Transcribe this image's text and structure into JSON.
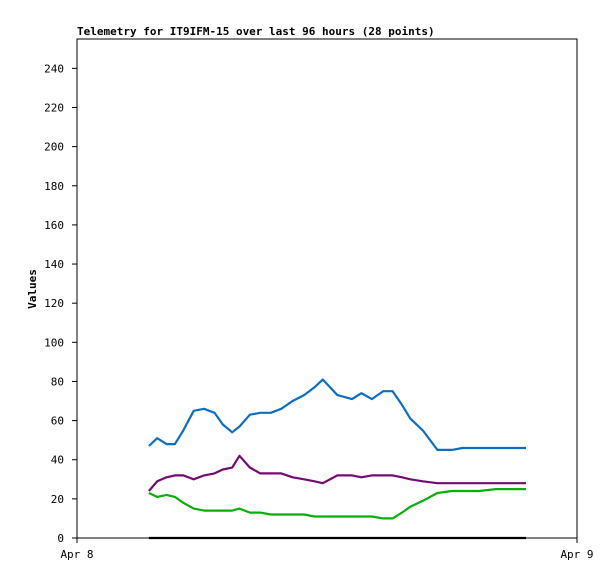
{
  "chart_data": {
    "type": "line",
    "title": "Telemetry for IT9IFM-15 over last 96 hours (28 points)",
    "xlabel": "",
    "ylabel": "Values",
    "ylim": [
      0,
      255
    ],
    "yticks": [
      0,
      20,
      40,
      60,
      80,
      100,
      120,
      140,
      160,
      180,
      200,
      220,
      240
    ],
    "xlim": [
      0,
      24
    ],
    "xtick_labels": [
      "Apr 8",
      "Apr 9"
    ],
    "grid": false,
    "legend": "none",
    "x": [
      3.45,
      3.85,
      4.3,
      4.7,
      5.1,
      5.6,
      6.1,
      6.6,
      7.0,
      7.45,
      7.8,
      8.3,
      8.8,
      9.3,
      9.8,
      10.35,
      10.9,
      11.4,
      11.8,
      12.5,
      13.2,
      13.65,
      14.15,
      14.7,
      15.15,
      15.6,
      16.0,
      16.6,
      17.3,
      18.0,
      18.5,
      19.3,
      20.1,
      20.9,
      21.55
    ],
    "series": [
      {
        "color": "#0a6fc4",
        "values": [
          47,
          51,
          48,
          48,
          55,
          65,
          66,
          64,
          58,
          54,
          57,
          63,
          64,
          64,
          66,
          70,
          73,
          77,
          81,
          73,
          71,
          74,
          71,
          75,
          75,
          68,
          61,
          55,
          45,
          45,
          46,
          46,
          46,
          46,
          46
        ]
      },
      {
        "color": "#740b73",
        "values": [
          24,
          29,
          31,
          32,
          32,
          30,
          32,
          33,
          35,
          36,
          42,
          36,
          33,
          33,
          33,
          31,
          30,
          29,
          28,
          32,
          32,
          31,
          32,
          32,
          32,
          31,
          30,
          29,
          28,
          28,
          28,
          28,
          28,
          28,
          28
        ]
      },
      {
        "color": "#0aae0a",
        "values": [
          23,
          21,
          22,
          21,
          18,
          15,
          14,
          14,
          14,
          14,
          15,
          13,
          13,
          12,
          12,
          12,
          12,
          11,
          11,
          11,
          11,
          11,
          11,
          10,
          10,
          13,
          16,
          19,
          23,
          24,
          24,
          24,
          25,
          25,
          25
        ]
      },
      {
        "color": "#000000",
        "values": [
          0,
          0,
          0,
          0,
          0,
          0,
          0,
          0,
          0,
          0,
          0,
          0,
          0,
          0,
          0,
          0,
          0,
          0,
          0,
          0,
          0,
          0,
          0,
          0,
          0,
          0,
          0,
          0,
          0,
          0,
          0,
          0,
          0,
          0,
          0
        ]
      }
    ]
  }
}
